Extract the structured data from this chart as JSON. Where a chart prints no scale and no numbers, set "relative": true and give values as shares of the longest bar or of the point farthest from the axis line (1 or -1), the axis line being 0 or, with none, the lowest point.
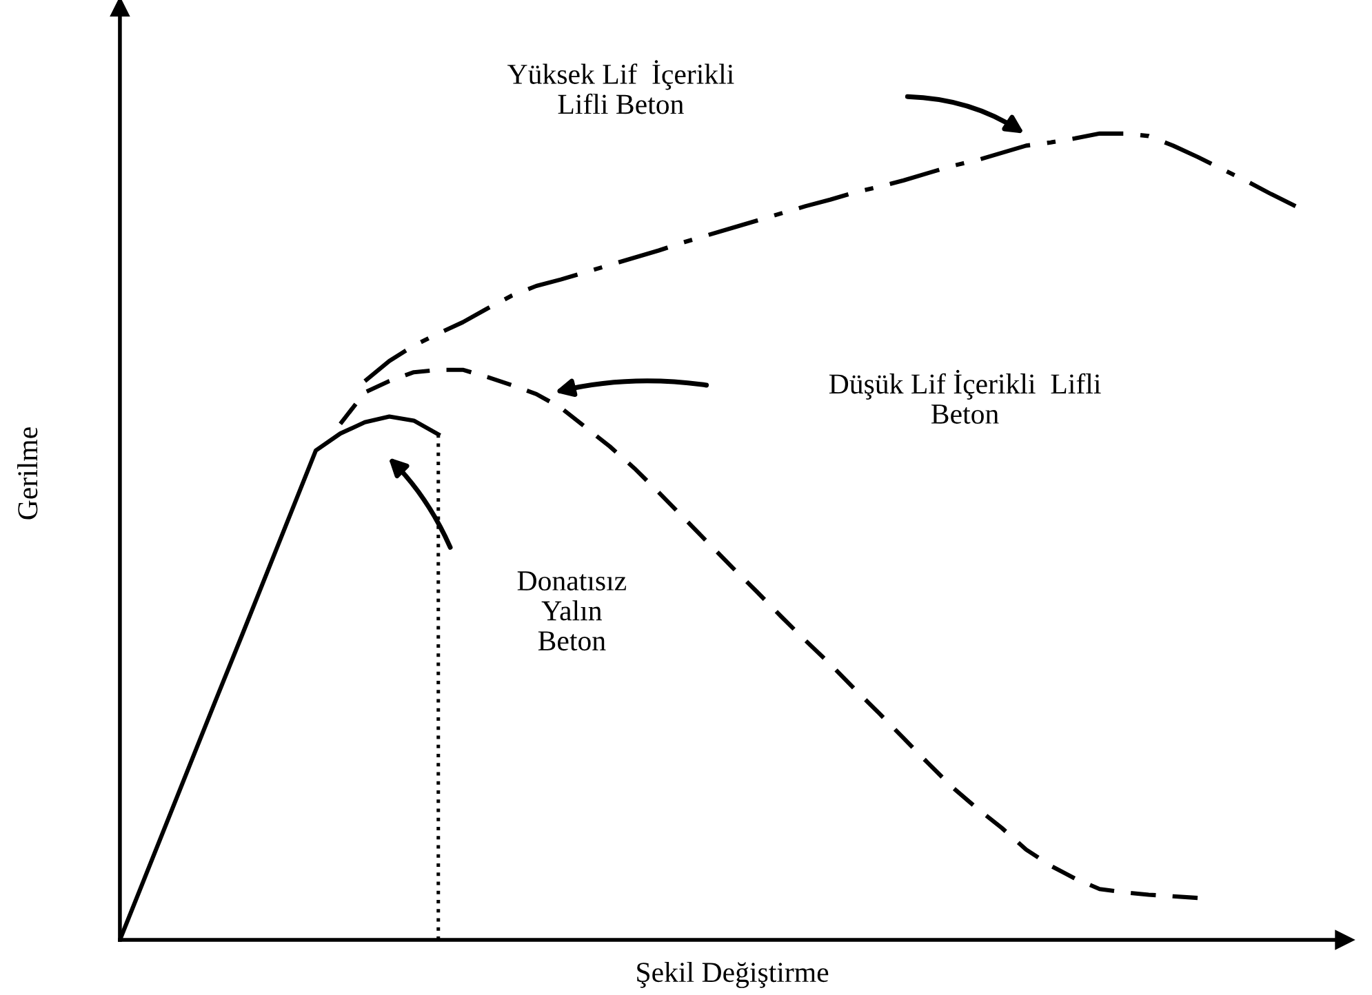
{
  "chart_data": {
    "type": "line",
    "relative": true,
    "xlabel": "Şekil Değiştirme",
    "ylabel": "Gerilme",
    "categories": [
      null,
      null,
      null,
      null,
      null,
      null,
      null,
      null,
      null,
      null,
      null,
      null,
      null,
      null,
      null,
      null,
      null,
      null,
      null,
      null,
      null,
      null,
      null,
      null,
      null,
      null,
      null,
      null,
      null,
      null,
      null,
      null,
      null,
      null,
      null,
      null,
      null,
      null,
      null,
      null,
      null,
      null,
      null,
      null,
      null,
      null,
      null,
      null,
      null,
      null,
      null
    ],
    "series": [
      {
        "color": "#000000",
        "line_style": "solid",
        "values": [
          0,
          0.076,
          0.152,
          0.228,
          0.304,
          0.379,
          0.455,
          0.531,
          0.607,
          0.628,
          0.642,
          0.649,
          0.644,
          0.627,
          null,
          null,
          null,
          null,
          null,
          null,
          null,
          null,
          null,
          null,
          null,
          null,
          null,
          null,
          null,
          null,
          null,
          null,
          null,
          null,
          null,
          null,
          null,
          null,
          null,
          null,
          null,
          null,
          null,
          null,
          null,
          null,
          null,
          null,
          null,
          null,
          null
        ]
      },
      {
        "color": "#000000",
        "line_style": "dashed",
        "values": [
          null,
          null,
          null,
          null,
          null,
          null,
          null,
          null,
          null,
          0.64,
          0.679,
          0.693,
          0.704,
          0.707,
          0.707,
          0.698,
          0.688,
          0.677,
          0.66,
          0.636,
          0.612,
          0.585,
          0.555,
          0.524,
          0.493,
          0.462,
          0.432,
          0.401,
          0.371,
          0.342,
          0.311,
          0.281,
          0.25,
          0.219,
          0.189,
          0.163,
          0.139,
          0.112,
          0.092,
          0.076,
          0.063,
          0.059,
          0.056,
          0.054,
          0.052,
          null,
          null,
          null,
          null,
          null,
          null
        ]
      },
      {
        "color": "#000000",
        "line_style": "dashdot",
        "values": [
          null,
          null,
          null,
          null,
          null,
          null,
          null,
          null,
          null,
          null,
          0.693,
          0.718,
          0.737,
          0.752,
          0.766,
          0.783,
          0.799,
          0.811,
          0.819,
          0.828,
          0.837,
          0.846,
          0.855,
          0.865,
          0.874,
          0.883,
          0.892,
          0.901,
          0.91,
          0.918,
          0.927,
          0.934,
          0.942,
          0.951,
          0.96,
          0.967,
          0.976,
          0.985,
          0.989,
          0.994,
          1,
          1,
          0.997,
          0.985,
          0.971,
          0.956,
          0.941,
          0.925,
          0.91,
          null,
          null
        ]
      }
    ],
    "annotations": [
      "Yüksek Lif  İçerikli\nLifli Beton",
      "Düşük Lif İçerikli  Lifli\nBeton",
      "Donatısız\nYalın\nBeton"
    ]
  }
}
